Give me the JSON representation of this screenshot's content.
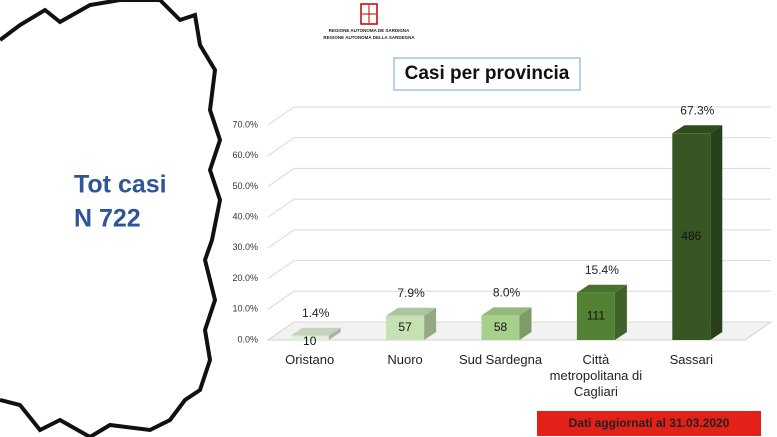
{
  "chart_data": {
    "type": "bar3d",
    "title": "Casi per provincia",
    "header": [
      "REGIONE AUTONOMA DE SARDIGNA",
      "REGIONE AUTONOMA DELLA SARDEGNA"
    ],
    "annotations": [
      "Tot casi",
      "N 722"
    ],
    "footer": "Dati aggiornati al 31.03.2020",
    "categories": [
      "Oristano",
      "Nuoro",
      "Sud Sardegna",
      "Città metropolitana di Cagliari",
      "Sassari"
    ],
    "values": [
      1.4,
      7.9,
      8.0,
      15.4,
      67.3
    ],
    "value_labels": [
      "1.4%",
      "7.9%",
      "8.0%",
      "15.4%",
      "67.3%"
    ],
    "counts": [
      10,
      57,
      58,
      111,
      486
    ],
    "colors": [
      "#e2efd9",
      "#c5e0b3",
      "#a8d08d",
      "#548235",
      "#375623"
    ],
    "ylim": [
      0,
      70
    ],
    "yticks": [
      {
        "value": 0,
        "label": "0.0%"
      },
      {
        "value": 10,
        "label": "10.0%"
      },
      {
        "value": 20,
        "label": "20.0%"
      },
      {
        "value": 30,
        "label": "30.0%"
      },
      {
        "value": 40,
        "label": "40.0%"
      },
      {
        "value": 50,
        "label": "50.0%"
      },
      {
        "value": 60,
        "label": "60.0%"
      },
      {
        "value": 70,
        "label": "70.0%"
      }
    ],
    "grid": true
  }
}
